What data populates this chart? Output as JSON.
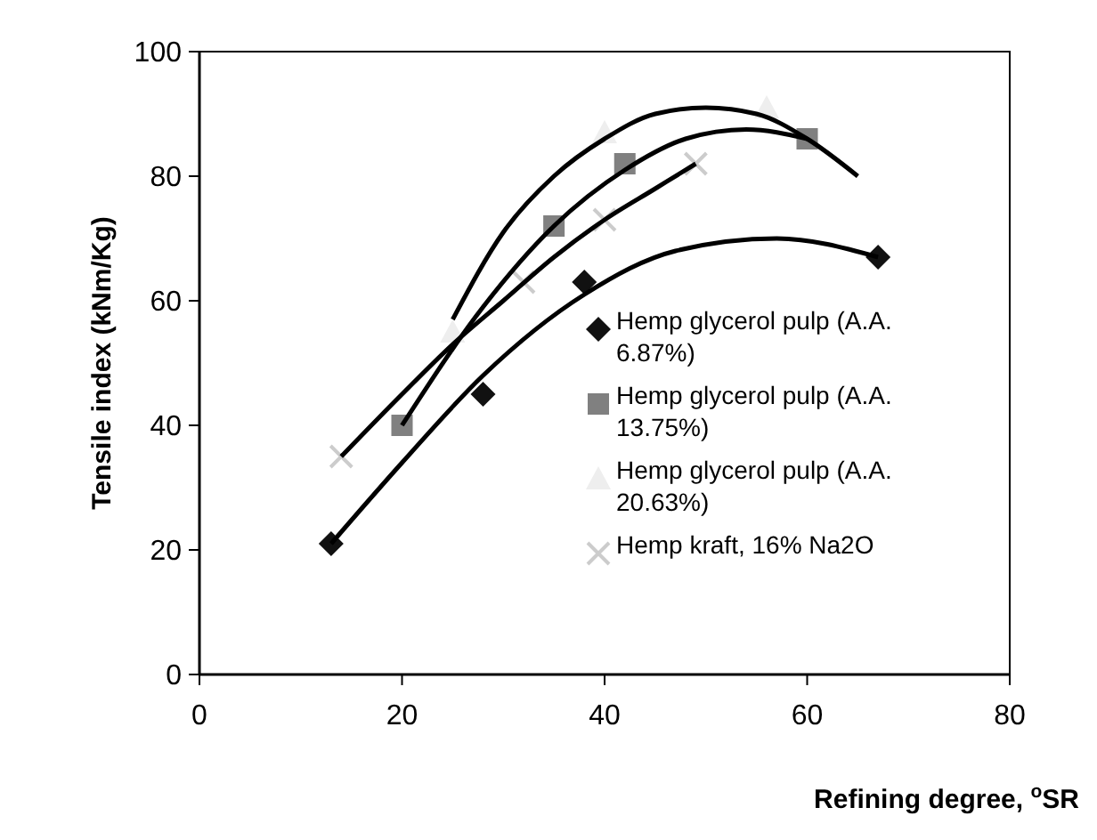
{
  "chart_data": {
    "type": "scatter",
    "xlabel": "Refining degree, $^{o}$SR",
    "ylabel": "Tensile index  (kNm/Kg)",
    "xlim": [
      0,
      80
    ],
    "xticks": [
      0,
      20,
      40,
      60,
      80
    ],
    "ylim": [
      0,
      100
    ],
    "yticks": [
      0,
      20,
      40,
      60,
      80,
      100
    ],
    "legend": "bottom right",
    "series": [
      {
        "name": "Hemp glycerol pulp (A.A. 6.87%)",
        "type": "scatter",
        "marker": "diamond",
        "color": "#111111",
        "x": [
          13,
          28,
          38,
          67
        ],
        "values": [
          21,
          45,
          63,
          67
        ]
      },
      {
        "name": "Hemp glycerol pulp (A.A. 13.75%)",
        "type": "scatter",
        "marker": "square",
        "color": "#808080",
        "x": [
          20,
          35,
          42,
          60
        ],
        "values": [
          40,
          72,
          82,
          86
        ]
      },
      {
        "name": "Hemp glycerol pulp (A.A. 20.63%)",
        "type": "scatter",
        "marker": "triangle",
        "color": "#eeeeee",
        "x": [
          25,
          40,
          56
        ],
        "values": [
          55,
          87,
          91
        ]
      },
      {
        "name": "Hemp kraft, 16% Na2O",
        "type": "scatter",
        "marker": "cross",
        "color": "#cccccc",
        "x": [
          14,
          32,
          40,
          49
        ],
        "values": [
          35,
          63,
          73,
          82
        ]
      },
      {
        "type": "line",
        "marker": "none",
        "color": "#000000",
        "x": [
          13,
          20,
          28,
          38,
          47,
          57,
          67
        ],
        "values": [
          21,
          34,
          48,
          61,
          68,
          70,
          67
        ]
      },
      {
        "type": "line",
        "marker": "none",
        "color": "#000000",
        "x": [
          20,
          28,
          35,
          42,
          48,
          54,
          60
        ],
        "values": [
          40,
          59,
          72,
          81,
          86,
          87.5,
          86
        ]
      },
      {
        "type": "line",
        "marker": "none",
        "color": "#000000",
        "x": [
          25,
          30,
          35,
          40,
          45,
          50,
          55,
          60,
          65
        ],
        "values": [
          57,
          71,
          80,
          86,
          90,
          91,
          90,
          86,
          80
        ]
      },
      {
        "type": "line",
        "marker": "none",
        "color": "#000000",
        "x": [
          14,
          20,
          25,
          30,
          35,
          40,
          45,
          49
        ],
        "values": [
          35,
          45,
          53,
          60,
          67,
          73,
          78,
          82
        ]
      }
    ]
  }
}
